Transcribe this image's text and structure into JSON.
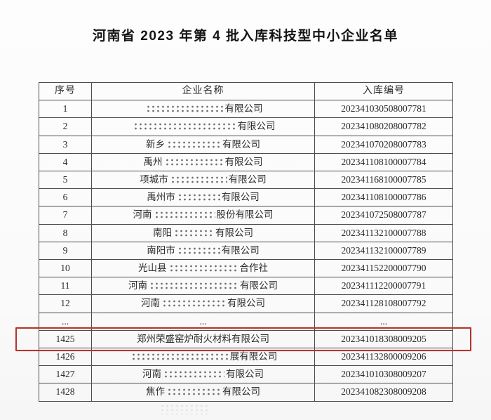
{
  "page_title": "河南省 2023 年第 4 批入库科技型中小企业名单",
  "table": {
    "headers": {
      "seq": "序号",
      "name": "企业名称",
      "code": "入库编号"
    },
    "rows": [
      {
        "seq": "1",
        "prefix": "",
        "censor": 112,
        "suffix": "有限公司",
        "code": "202341030508007781",
        "highlight": false
      },
      {
        "seq": "2",
        "prefix": "",
        "censor": 148,
        "suffix": "有限公司",
        "code": "202341080208007782",
        "highlight": false
      },
      {
        "seq": "3",
        "prefix": "新乡",
        "censor": 78,
        "suffix": "有限公司",
        "code": "202341070208007783",
        "highlight": false
      },
      {
        "seq": "4",
        "prefix": "禹州",
        "censor": 85,
        "suffix": "有限公司",
        "code": "202341108100007784",
        "highlight": false
      },
      {
        "seq": "5",
        "prefix": "项城市",
        "censor": 82,
        "suffix": "有限公司",
        "code": "202341168100007785",
        "highlight": false
      },
      {
        "seq": "6",
        "prefix": "禹州市",
        "censor": 62,
        "suffix": "有限公司",
        "code": "202341108100007786",
        "highlight": false
      },
      {
        "seq": "7",
        "prefix": "河南",
        "censor": 88,
        "suffix": "股份有限公司",
        "code": "202341072508007787",
        "highlight": false
      },
      {
        "seq": "8",
        "prefix": "南阳",
        "censor": 58,
        "suffix": "有限公司",
        "code": "202341132100007788",
        "highlight": false
      },
      {
        "seq": "9",
        "prefix": "南阳市",
        "censor": 62,
        "suffix": "有限公司",
        "code": "202341132100007789",
        "highlight": false
      },
      {
        "seq": "10",
        "prefix": "光山县",
        "censor": 100,
        "suffix": "合作社",
        "code": "202341152200007790",
        "highlight": false
      },
      {
        "seq": "11",
        "prefix": "河南",
        "censor": 128,
        "suffix": "有限公司",
        "code": "202341112200007791",
        "highlight": false
      },
      {
        "seq": "12",
        "prefix": "河南",
        "censor": 92,
        "suffix": "有限公司",
        "code": "202341128108007792",
        "highlight": false
      },
      {
        "seq": "...",
        "prefix": "...",
        "censor": 0,
        "suffix": "",
        "code": "...",
        "highlight": false
      },
      {
        "seq": "1425",
        "prefix": "郑州荣盛窑炉耐火材料有限公司",
        "censor": 0,
        "suffix": "",
        "code": "202341018308009205",
        "highlight": true
      },
      {
        "seq": "1426",
        "prefix": "",
        "censor": 140,
        "suffix": "展有限公司",
        "code": "202341132800009206",
        "highlight": false
      },
      {
        "seq": "1427",
        "prefix": "河南",
        "censor": 88,
        "suffix": "有限公司",
        "code": "202341010308009207",
        "highlight": false
      },
      {
        "seq": "1428",
        "prefix": "焦作",
        "censor": 78,
        "suffix": "有限公司",
        "code": "202341082308009208",
        "highlight": false
      }
    ]
  },
  "highlight": {
    "color": "#b4362f",
    "row_seq": "1425"
  }
}
